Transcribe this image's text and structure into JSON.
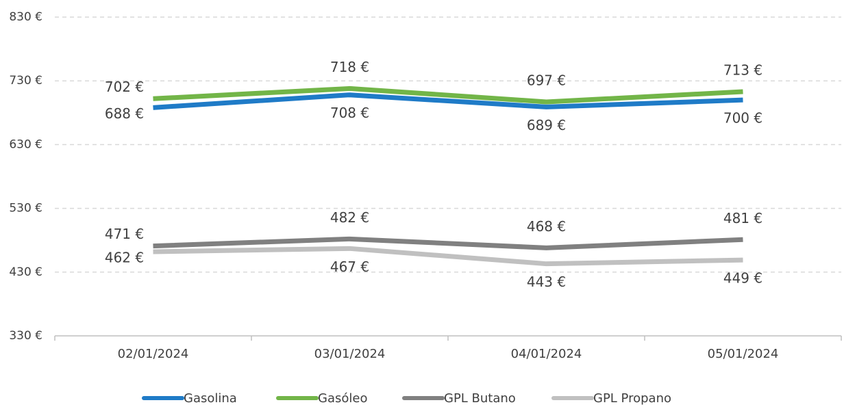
{
  "chart_data": {
    "type": "line",
    "categories": [
      "02/01/2024",
      "03/01/2024",
      "04/01/2024",
      "05/01/2024"
    ],
    "series": [
      {
        "name": "Gasolina",
        "color": "#1f7bc7",
        "values": [
          688,
          708,
          689,
          700
        ],
        "value_labels": [
          "688 €",
          "708 €",
          "689 €",
          "700 €"
        ]
      },
      {
        "name": "Gasóleo",
        "color": "#72b548",
        "values": [
          702,
          718,
          697,
          713
        ],
        "value_labels": [
          "702 €",
          "718 €",
          "697 €",
          "713 €"
        ]
      },
      {
        "name": "GPL Butano",
        "color": "#808080",
        "values": [
          471,
          482,
          468,
          481
        ],
        "value_labels": [
          "471 €",
          "482 €",
          "468 €",
          "481 €"
        ]
      },
      {
        "name": "GPL Propano",
        "color": "#c0c0c0",
        "values": [
          462,
          467,
          443,
          449
        ],
        "value_labels": [
          "462 €",
          "467 €",
          "443 €",
          "449 €"
        ]
      }
    ],
    "ylim": [
      330,
      830
    ],
    "yticks": [
      {
        "value": 330,
        "label": "330 €"
      },
      {
        "value": 430,
        "label": "430 €"
      },
      {
        "value": 530,
        "label": "530 €"
      },
      {
        "value": 630,
        "label": "630 €"
      },
      {
        "value": 730,
        "label": "730 €"
      },
      {
        "value": 830,
        "label": "830 €"
      }
    ],
    "grid": true
  }
}
